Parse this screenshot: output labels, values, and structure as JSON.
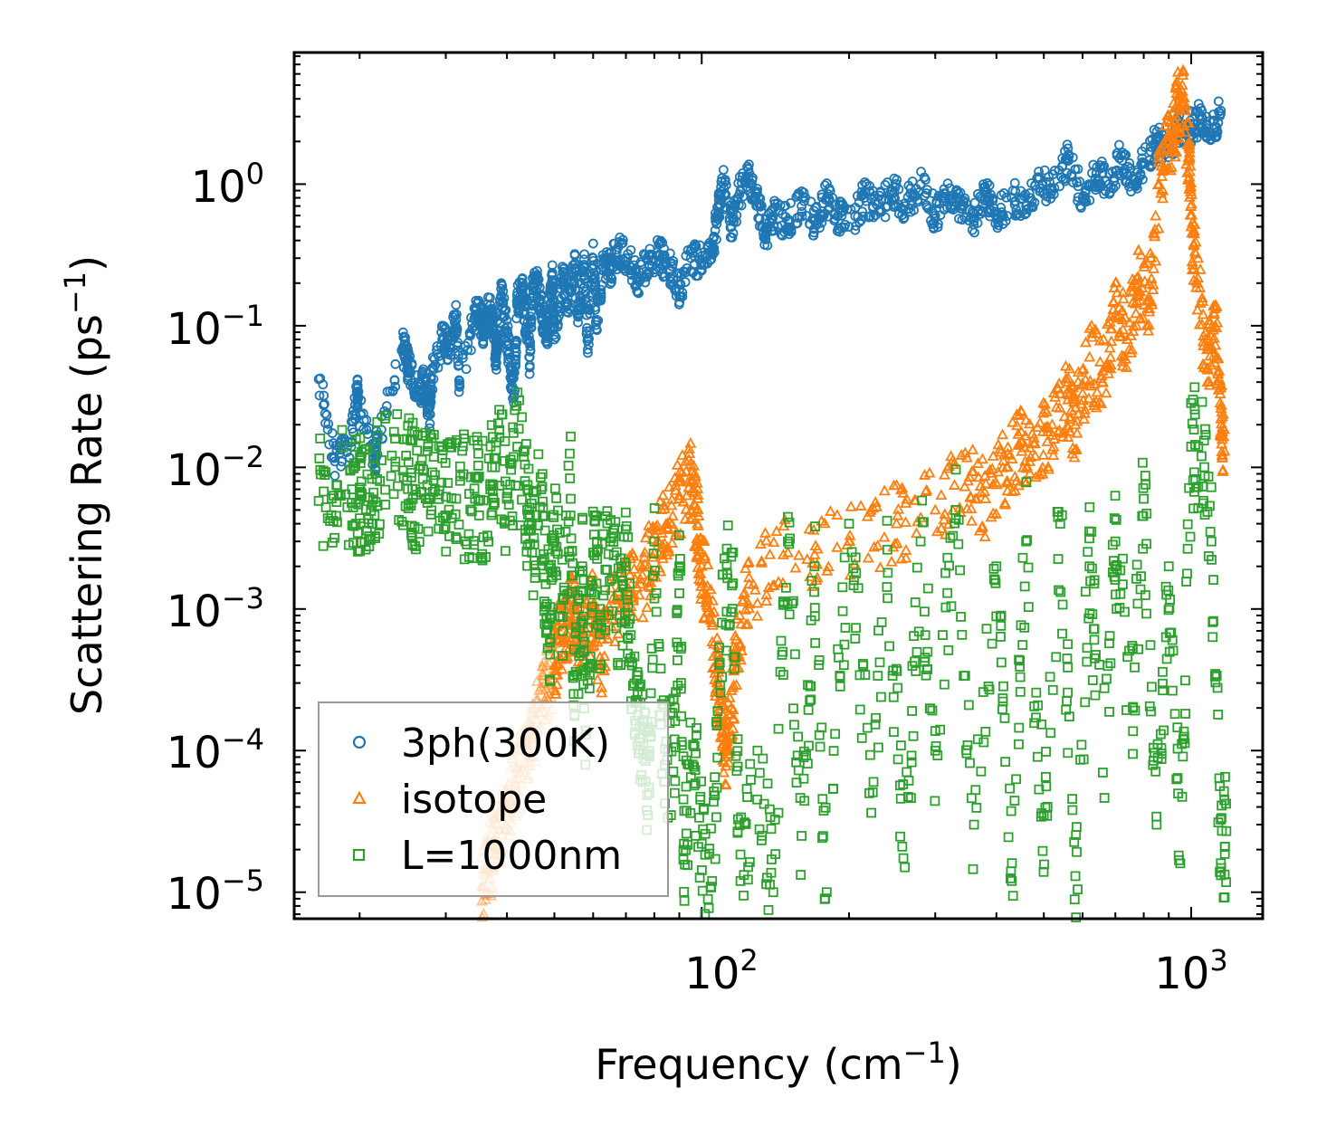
{
  "chart_data": {
    "type": "scatter",
    "title": "",
    "xlabel": "Frequency (cm",
    "xlabel_sup": "−1",
    "xlabel_suffix": ")",
    "ylabel": "Scattering Rate (ps",
    "ylabel_sup": "−1",
    "ylabel_suffix": ")",
    "xscale": "log",
    "yscale": "log",
    "xlim": [
      14.7,
      1400
    ],
    "ylim": [
      6.5e-06,
      8.5
    ],
    "grid": false,
    "legend_position": "lower-left",
    "x_ticks": [
      {
        "value": 100,
        "base": "10",
        "exp": "2"
      },
      {
        "value": 1000,
        "base": "10",
        "exp": "3"
      }
    ],
    "y_ticks": [
      {
        "value": 1,
        "base": "10",
        "exp": "0"
      },
      {
        "value": 0.1,
        "base": "10",
        "exp": "−1"
      },
      {
        "value": 0.01,
        "base": "10",
        "exp": "−2"
      },
      {
        "value": 0.001,
        "base": "10",
        "exp": "−3"
      },
      {
        "value": 0.0001,
        "base": "10",
        "exp": "−4"
      },
      {
        "value": 1e-05,
        "base": "10",
        "exp": "−5"
      }
    ],
    "series": [
      {
        "name": "3ph(300K)",
        "marker": "circle",
        "color": "#1f77b4",
        "points": [
          [
            16.5,
            0.042
          ],
          [
            17.8,
            0.011
          ],
          [
            19.2,
            0.015
          ],
          [
            19.8,
            0.034
          ],
          [
            19.8,
            0.029
          ],
          [
            21.5,
            0.011
          ],
          [
            21.7,
            0.015
          ],
          [
            24.5,
            0.07
          ],
          [
            25,
            0.058
          ],
          [
            25.2,
            0.048
          ],
          [
            26.5,
            0.037
          ],
          [
            27.2,
            0.038
          ],
          [
            27.8,
            0.024
          ],
          [
            28,
            0.042
          ],
          [
            29.5,
            0.08
          ],
          [
            30.5,
            0.07
          ],
          [
            31.5,
            0.11
          ],
          [
            32,
            0.037
          ],
          [
            34.5,
            0.12
          ],
          [
            35.5,
            0.11
          ],
          [
            35.8,
            0.092
          ],
          [
            37,
            0.14
          ],
          [
            37.5,
            0.1
          ],
          [
            38,
            0.06
          ],
          [
            38.2,
            0.08
          ],
          [
            39,
            0.16
          ],
          [
            40,
            0.09
          ],
          [
            40.8,
            0.042
          ],
          [
            41.5,
            0.035
          ],
          [
            42,
            0.15
          ],
          [
            43,
            0.18
          ],
          [
            43.5,
            0.12
          ],
          [
            44.5,
            0.06
          ],
          [
            45,
            0.16
          ],
          [
            46,
            0.2
          ],
          [
            47,
            0.13
          ],
          [
            48,
            0.1
          ],
          [
            48.5,
            0.09
          ],
          [
            49.5,
            0.21
          ],
          [
            50,
            0.08
          ],
          [
            52,
            0.24
          ],
          [
            53,
            0.14
          ],
          [
            55,
            0.25
          ],
          [
            56,
            0.12
          ],
          [
            57.5,
            0.27
          ],
          [
            58.5,
            0.068
          ],
          [
            60,
            0.3
          ],
          [
            61,
            0.11
          ],
          [
            63,
            0.28
          ],
          [
            65,
            0.25
          ],
          [
            67,
            0.33
          ],
          [
            70,
            0.3
          ],
          [
            74,
            0.22
          ],
          [
            78,
            0.27
          ],
          [
            82,
            0.32
          ],
          [
            86,
            0.25
          ],
          [
            90,
            0.18
          ],
          [
            95,
            0.3
          ],
          [
            100,
            0.28
          ],
          [
            105,
            0.35
          ],
          [
            108,
            0.6
          ],
          [
            110,
            1.1
          ],
          [
            115,
            0.5
          ],
          [
            120,
            0.9
          ],
          [
            125,
            1.2
          ],
          [
            130,
            0.7
          ],
          [
            135,
            0.45
          ],
          [
            140,
            0.6
          ],
          [
            150,
            0.55
          ],
          [
            160,
            0.7
          ],
          [
            170,
            0.55
          ],
          [
            180,
            0.8
          ],
          [
            190,
            0.6
          ],
          [
            200,
            0.5
          ],
          [
            215,
            0.8
          ],
          [
            230,
            0.65
          ],
          [
            245,
            0.9
          ],
          [
            260,
            0.7
          ],
          [
            280,
            1.0
          ],
          [
            300,
            0.6
          ],
          [
            320,
            0.8
          ],
          [
            340,
            0.7
          ],
          [
            360,
            0.55
          ],
          [
            380,
            0.9
          ],
          [
            400,
            0.6
          ],
          [
            430,
            0.8
          ],
          [
            460,
            0.7
          ],
          [
            490,
            1.1
          ],
          [
            520,
            0.9
          ],
          [
            560,
            1.5
          ],
          [
            600,
            0.8
          ],
          [
            640,
            1.2
          ],
          [
            680,
            1.0
          ],
          [
            720,
            1.6
          ],
          [
            760,
            1.0
          ],
          [
            800,
            1.4
          ],
          [
            850,
            2.0
          ],
          [
            900,
            1.8
          ],
          [
            950,
            2.6
          ],
          [
            1000,
            2.5
          ],
          [
            1050,
            3.0
          ],
          [
            1100,
            2.2
          ],
          [
            1150,
            3.3
          ]
        ]
      },
      {
        "name": "isotope",
        "marker": "triangle",
        "color": "#ff7f0e",
        "points": [
          [
            35.5,
            1.1e-05
          ],
          [
            36.5,
            1.5e-05
          ],
          [
            37.5,
            2e-05
          ],
          [
            38.5,
            2.8e-05
          ],
          [
            40,
            3.5e-05
          ],
          [
            41,
            5e-05
          ],
          [
            42.5,
            7e-05
          ],
          [
            44,
            0.0001
          ],
          [
            45,
            0.00013
          ],
          [
            47,
            0.0002
          ],
          [
            48.5,
            0.0003
          ],
          [
            50,
            0.0004
          ],
          [
            51,
            0.0006
          ],
          [
            53,
            0.0008
          ],
          [
            55,
            0.001
          ],
          [
            57,
            0.0006
          ],
          [
            60,
            0.001
          ],
          [
            62,
            0.0004
          ],
          [
            65,
            0.0009
          ],
          [
            70,
            0.0012
          ],
          [
            75,
            0.0015
          ],
          [
            80,
            0.0025
          ],
          [
            85,
            0.004
          ],
          [
            90,
            0.006
          ],
          [
            95,
            0.008
          ],
          [
            98,
            0.004
          ],
          [
            100,
            0.002
          ],
          [
            105,
            0.0008
          ],
          [
            108,
            0.0003
          ],
          [
            110,
            0.00015
          ],
          [
            112,
            0.0001
          ],
          [
            115,
            0.0002
          ],
          [
            118,
            0.0005
          ],
          [
            125,
            0.0015
          ],
          [
            150,
            0.0025
          ],
          [
            200,
            0.003
          ],
          [
            250,
            0.004
          ],
          [
            300,
            0.005
          ],
          [
            350,
            0.008
          ],
          [
            380,
            0.006
          ],
          [
            420,
            0.01
          ],
          [
            450,
            0.015
          ],
          [
            480,
            0.012
          ],
          [
            520,
            0.02
          ],
          [
            560,
            0.03
          ],
          [
            580,
            0.02
          ],
          [
            620,
            0.06
          ],
          [
            660,
            0.04
          ],
          [
            700,
            0.12
          ],
          [
            740,
            0.08
          ],
          [
            780,
            0.2
          ],
          [
            820,
            0.15
          ],
          [
            860,
            1.0
          ],
          [
            900,
            2.0
          ],
          [
            930,
            3.0
          ],
          [
            960,
            4.5
          ],
          [
            990,
            1.5
          ],
          [
            1000,
            0.5
          ],
          [
            1030,
            0.2
          ],
          [
            1080,
            0.05
          ],
          [
            1120,
            0.1
          ],
          [
            1150,
            0.022
          ],
          [
            1170,
            0.013
          ]
        ]
      },
      {
        "name": "L=1000nm",
        "marker": "square",
        "color": "#2ca02c",
        "points": [
          [
            16.5,
            0.0058
          ],
          [
            17.7,
            0.0063
          ],
          [
            19.3,
            0.007
          ],
          [
            20,
            0.0072
          ],
          [
            20.2,
            0.0065
          ],
          [
            21.2,
            0.0083
          ],
          [
            22,
            0.008
          ],
          [
            24.5,
            0.0095
          ],
          [
            25.5,
            0.0085
          ],
          [
            26,
            0.007
          ],
          [
            27.5,
            0.0075
          ],
          [
            28.5,
            0.007
          ],
          [
            30,
            0.0062
          ],
          [
            31.5,
            0.006
          ],
          [
            33.5,
            0.0065
          ],
          [
            35,
            0.0058
          ],
          [
            37,
            0.007
          ],
          [
            38,
            0.015
          ],
          [
            40,
            0.006
          ],
          [
            42,
            0.014
          ],
          [
            44,
            0.005
          ],
          [
            45,
            0.0025
          ],
          [
            47,
            0.007
          ],
          [
            48,
            0.0015
          ],
          [
            49,
            0.00085
          ],
          [
            50,
            0.003
          ],
          [
            52,
            0.0012
          ],
          [
            54,
            0.006
          ],
          [
            55,
            0.00018
          ],
          [
            57,
            0.002
          ],
          [
            58,
            0.00013
          ],
          [
            60,
            0.0025
          ],
          [
            62,
            0.001
          ],
          [
            65,
            0.003
          ],
          [
            68,
            0.0009
          ],
          [
            70,
            0.002
          ],
          [
            72,
            0.0004
          ],
          [
            74,
            0.00022
          ],
          [
            76,
            0.0001
          ],
          [
            78,
            5.5e-05
          ],
          [
            80,
            0.003
          ],
          [
            84,
            6e-05
          ],
          [
            88,
            0.00012
          ],
          [
            90,
            0.002
          ],
          [
            92,
            2.2e-05
          ],
          [
            96,
            0.00011
          ],
          [
            100,
            2.2e-05
          ],
          [
            105,
            1.2e-05
          ],
          [
            110,
            0.0008
          ],
          [
            115,
            0.0025
          ],
          [
            120,
            1.2e-05
          ],
          [
            130,
            0.0001
          ],
          [
            140,
            1e-05
          ],
          [
            150,
            0.003
          ],
          [
            160,
            2.5e-05
          ],
          [
            170,
            0.002
          ],
          [
            180,
            1e-05
          ],
          [
            200,
            0.004
          ],
          [
            220,
            5e-05
          ],
          [
            240,
            0.0018
          ],
          [
            260,
            1.5e-05
          ],
          [
            280,
            0.003
          ],
          [
            300,
            0.0001
          ],
          [
            330,
            0.005
          ],
          [
            360,
            3e-05
          ],
          [
            400,
            0.002
          ],
          [
            430,
            1.2e-05
          ],
          [
            460,
            0.003
          ],
          [
            500,
            3.5e-05
          ],
          [
            540,
            0.004
          ],
          [
            580,
            1.3e-05
          ],
          [
            620,
            0.002
          ],
          [
            660,
            7e-05
          ],
          [
            700,
            0.003
          ],
          [
            760,
            0.0002
          ],
          [
            800,
            0.006
          ],
          [
            850,
            3e-05
          ],
          [
            900,
            0.002
          ],
          [
            950,
            1.6e-05
          ],
          [
            1000,
            0.014
          ],
          [
            1050,
            0.012
          ],
          [
            1100,
            0.003
          ],
          [
            1150,
            1.6e-05
          ],
          [
            1180,
            2.7e-05
          ]
        ]
      }
    ]
  }
}
